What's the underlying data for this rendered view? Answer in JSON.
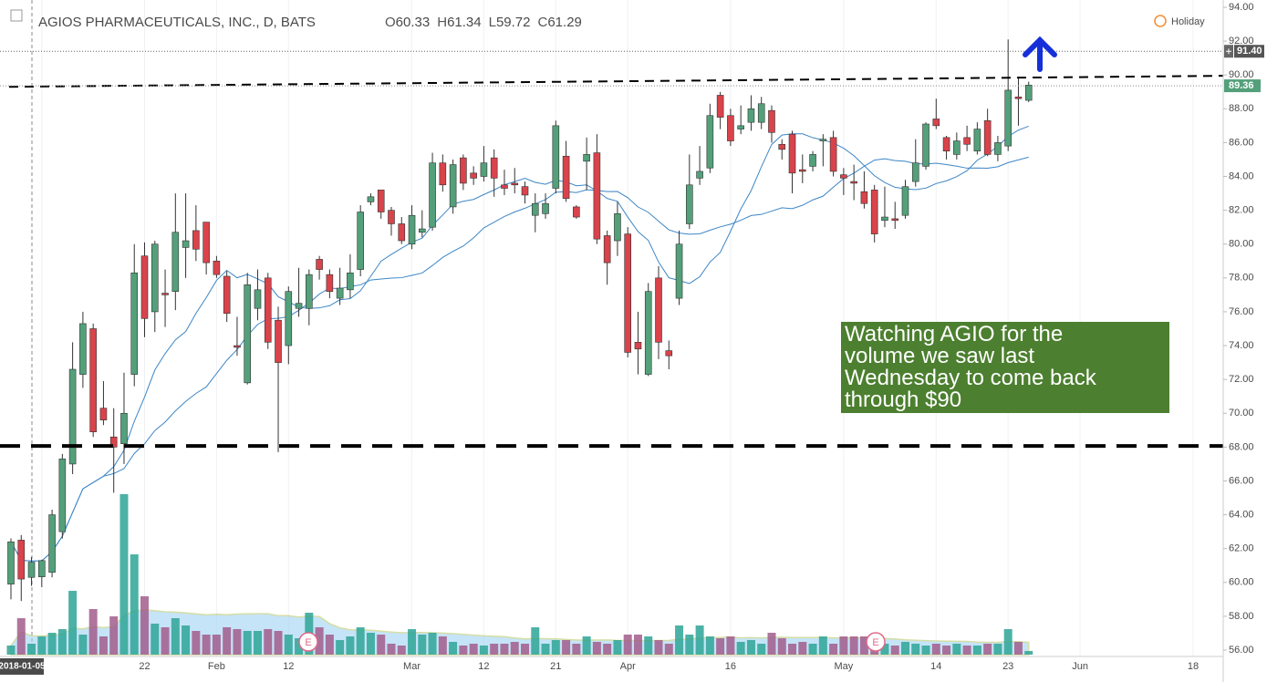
{
  "header": {
    "symbol": "AGIOS PHARMACEUTICALS, INC., D, BATS",
    "ohlc": [
      {
        "label": "O",
        "value": 60.33
      },
      {
        "label": "H",
        "value": 61.34
      },
      {
        "label": "L",
        "value": 59.72
      },
      {
        "label": "C",
        "value": 61.29
      }
    ],
    "status": "Holiday"
  },
  "chart_data": {
    "type": "candlestick",
    "categories": [
      null,
      null,
      null,
      "2018-01-05",
      null,
      null,
      null,
      null,
      null,
      null,
      null,
      null,
      null,
      "22",
      null,
      null,
      null,
      null,
      null,
      null,
      "Feb",
      null,
      null,
      null,
      null,
      null,
      null,
      "12",
      null,
      null,
      null,
      null,
      null,
      null,
      null,
      null,
      null,
      null,
      null,
      "Mar",
      null,
      null,
      null,
      null,
      null,
      null,
      "12",
      null,
      null,
      null,
      null,
      null,
      null,
      "21",
      null,
      null,
      null,
      null,
      null,
      null,
      "Apr",
      null,
      null,
      null,
      null,
      null,
      null,
      null,
      null,
      null,
      "16",
      null,
      null,
      null,
      null,
      null,
      null,
      null,
      null,
      null,
      null,
      "May",
      null,
      null,
      null,
      null,
      null,
      null,
      null,
      null,
      "14",
      null,
      null,
      null,
      null,
      null,
      null,
      "23",
      null,
      null,
      null,
      null,
      null,
      null,
      "Jun",
      null,
      null,
      null,
      null,
      null,
      null,
      null,
      null,
      null,
      null,
      "18"
    ],
    "open": [
      59.9,
      62.5,
      60.3,
      60.33,
      60.6,
      63,
      67,
      72.3,
      75,
      70.3,
      68.6,
      68.2,
      72.3,
      79.3,
      76,
      77.1,
      77.2,
      79.8,
      80.8,
      81.3,
      79,
      78.1,
      74,
      71.8,
      76.2,
      78,
      75.5,
      74,
      76.2,
      76.2,
      79.1,
      78.2,
      76.8,
      77.3,
      78.5,
      82.5,
      83.2,
      82,
      81.2,
      80,
      80.7,
      81,
      84.8,
      82.2,
      85.1,
      84.2,
      84,
      85.1,
      83.5,
      83.6,
      83.4,
      81.7,
      81.8,
      83.3,
      85.2,
      82.2,
      84.9,
      85.4,
      80.5,
      80.2,
      80.6,
      74.2,
      72.3,
      78,
      73.7,
      76.8,
      81.2,
      83.9,
      84.5,
      88.8,
      87.6,
      86.8,
      87.2,
      87.2,
      87.9,
      85.9,
      86.5,
      84.4,
      84.6,
      86.1,
      86.3,
      84.1,
      83.7,
      83.1,
      83.2,
      81.4,
      81.5,
      81.7,
      83.7,
      84.6,
      87.4,
      86.3,
      85.3,
      86.3,
      85.5,
      87.3,
      85.3,
      85.8,
      88.7,
      88.5,
      null,
      null,
      null,
      null,
      null,
      null,
      null,
      null,
      null,
      null,
      null,
      null,
      null,
      null,
      null,
      null
    ],
    "high": [
      62.6,
      62.8,
      61.5,
      61.34,
      64.3,
      67.6,
      74.2,
      76,
      75.3,
      71.9,
      70.3,
      72.4,
      80,
      80.1,
      80.2,
      78.5,
      83,
      83,
      82.3,
      81.3,
      79.3,
      78.4,
      75.7,
      78.3,
      78.5,
      78.3,
      76.3,
      77.5,
      78.6,
      78.5,
      79.3,
      78.5,
      78.6,
      79.4,
      82.3,
      83,
      83.2,
      82.2,
      81.6,
      82.3,
      82,
      85.4,
      85.3,
      85,
      85.3,
      84.6,
      85.8,
      85.6,
      84.4,
      84.5,
      83.7,
      83,
      83,
      87.3,
      86.1,
      82.3,
      86.3,
      86.5,
      80.8,
      82.5,
      81,
      76,
      77.7,
      78.7,
      74.3,
      80.8,
      85.3,
      85.8,
      88.3,
      89,
      88,
      88.2,
      88.8,
      88.7,
      88.2,
      86.2,
      86.7,
      85.3,
      85.5,
      86.5,
      86.7,
      84.5,
      84.7,
      84.3,
      83.5,
      83.4,
      82.5,
      83.8,
      86.2,
      87.2,
      88.6,
      86.4,
      86.6,
      87,
      87.2,
      88,
      86.4,
      92.1,
      89.8,
      89.6,
      null,
      null,
      null,
      null,
      null,
      null,
      null,
      null,
      null,
      null,
      null,
      null,
      null,
      null,
      null,
      null
    ],
    "low": [
      59,
      58.9,
      59.8,
      59.72,
      60.3,
      62.6,
      66.4,
      71.5,
      68.6,
      69.3,
      65.3,
      67,
      71.6,
      74.5,
      74.8,
      75.1,
      76.1,
      78,
      79,
      78.2,
      78,
      75.4,
      73.4,
      71.7,
      75.5,
      73.8,
      67.7,
      72.9,
      75.7,
      75.2,
      77.9,
      76.8,
      76.4,
      76.8,
      78.1,
      82.3,
      81.5,
      80.5,
      80,
      79.7,
      80.4,
      80.8,
      83.1,
      81.8,
      83.2,
      83.5,
      83.7,
      82.8,
      82.9,
      83,
      82.4,
      80.7,
      81.5,
      83,
      82.5,
      81.5,
      83.2,
      80,
      77.6,
      79.3,
      73.3,
      72.3,
      72.2,
      73.2,
      72.6,
      76.4,
      80.9,
      83.5,
      84.2,
      86.8,
      85.8,
      86.5,
      86.7,
      86.8,
      86,
      85,
      83,
      83.6,
      84.3,
      84.6,
      84,
      82.9,
      82.6,
      82.1,
      80.1,
      81,
      80.9,
      81.5,
      83.4,
      84.4,
      86.8,
      85,
      85,
      85.5,
      85.3,
      85.2,
      84.9,
      85.5,
      87,
      88.4,
      null,
      null,
      null,
      null,
      null,
      null,
      null,
      null,
      null,
      null,
      null,
      null,
      null,
      null,
      null,
      null
    ],
    "close": [
      62.4,
      60.2,
      61.2,
      61.29,
      64,
      67.3,
      72.6,
      75.3,
      68.9,
      69.6,
      68,
      70,
      78.3,
      75.6,
      80,
      77,
      80.7,
      80.2,
      79.7,
      78.9,
      78.2,
      75.9,
      73.9,
      77.6,
      77.3,
      74.2,
      73,
      77.2,
      76.5,
      78.2,
      78.5,
      77.2,
      77.4,
      78.3,
      81.9,
      82.8,
      81.9,
      81.2,
      80.2,
      81.7,
      80.9,
      84.8,
      83.5,
      84.7,
      83.6,
      83.9,
      84.8,
      83.9,
      83.3,
      83.5,
      82.9,
      82.4,
      82.4,
      87,
      82.7,
      81.6,
      85.3,
      80.3,
      78.9,
      81.8,
      73.6,
      73.8,
      77.2,
      74.2,
      73.4,
      80,
      83.5,
      84.3,
      87.6,
      87.5,
      86.1,
      87,
      88,
      88.3,
      86.6,
      85.6,
      84.2,
      84.3,
      85.3,
      86.2,
      84.3,
      83.9,
      83.6,
      82.4,
      80.6,
      81.6,
      81.4,
      83.4,
      84.8,
      87.1,
      87,
      85.5,
      86.1,
      85.9,
      86.8,
      85.3,
      86,
      89.1,
      88.6,
      89.4,
      null,
      null,
      null,
      null,
      null,
      null,
      null,
      null,
      null,
      null,
      null,
      null,
      null,
      null,
      null,
      null
    ],
    "volume": [
      10,
      40,
      12,
      20,
      24,
      28,
      70,
      22,
      50,
      20,
      42,
      176,
      110,
      64,
      34,
      30,
      40,
      32,
      26,
      22,
      22,
      30,
      28,
      26,
      26,
      28,
      26,
      22,
      18,
      46,
      30,
      22,
      16,
      20,
      30,
      24,
      22,
      12,
      10,
      28,
      22,
      24,
      20,
      14,
      10,
      12,
      10,
      12,
      12,
      14,
      12,
      30,
      12,
      16,
      16,
      12,
      20,
      14,
      12,
      16,
      22,
      22,
      20,
      16,
      12,
      32,
      22,
      32,
      20,
      18,
      20,
      14,
      16,
      12,
      24,
      18,
      12,
      14,
      12,
      20,
      12,
      20,
      20,
      20,
      16,
      12,
      10,
      14,
      12,
      10,
      12,
      10,
      12,
      10,
      10,
      12,
      12,
      28,
      14,
      4,
      null,
      null,
      null,
      null,
      null,
      null,
      null,
      null,
      null,
      null,
      null,
      null,
      null,
      null,
      null,
      null
    ],
    "up_color": "#53a07a",
    "down_color": "#d9434b",
    "volume_up_color": "#2ea597",
    "volume_down_color": "#a15d8c",
    "ylim": [
      56,
      94
    ],
    "yticks": [
      {
        "value": 56,
        "label": "56.00"
      },
      {
        "value": 58,
        "label": "58.00"
      },
      {
        "value": 60,
        "label": "60.00"
      },
      {
        "value": 62,
        "label": "62.00"
      },
      {
        "value": 64,
        "label": "64.00"
      },
      {
        "value": 66,
        "label": "66.00"
      },
      {
        "value": 68,
        "label": "68.00"
      },
      {
        "value": 70,
        "label": "70.00"
      },
      {
        "value": 72,
        "label": "72.00"
      },
      {
        "value": 74,
        "label": "74.00"
      },
      {
        "value": 76,
        "label": "76.00"
      },
      {
        "value": 78,
        "label": "78.00"
      },
      {
        "value": 80,
        "label": "80.00"
      },
      {
        "value": 82,
        "label": "82.00"
      },
      {
        "value": 84,
        "label": "84.00"
      },
      {
        "value": 86,
        "label": "86.00"
      },
      {
        "value": 88,
        "label": "88.00"
      },
      {
        "value": 90,
        "label": "90.00"
      },
      {
        "value": 92,
        "label": "92.00"
      },
      {
        "value": 94,
        "label": "94.00"
      }
    ],
    "grid": true,
    "price_lines": [
      {
        "value": 91.4,
        "label": "91.40"
      },
      {
        "value": 89.36,
        "label": "89.36"
      }
    ],
    "support": 68.07,
    "resistance": [
      89.3,
      89.95
    ],
    "earnings": [
      "E",
      "E"
    ],
    "annotation": [
      "Watching AGIO for the",
      "volume we saw last",
      "Wednesday to come back",
      "through $90"
    ]
  }
}
